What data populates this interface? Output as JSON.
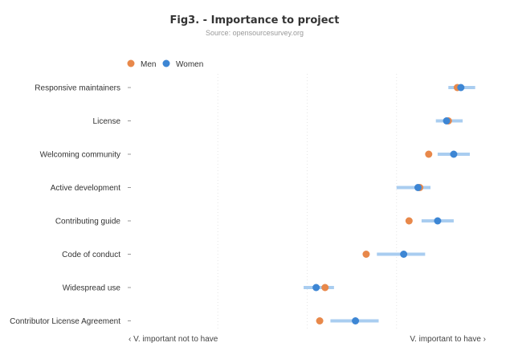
{
  "chart_data": {
    "type": "scatter",
    "title": "Fig3. - Importance to project",
    "subtitle": "Source: opensourcesurvey.org",
    "categories": [
      "Responsive maintainers",
      "License",
      "Welcoming community",
      "Active development",
      "Contributing guide",
      "Code of conduct",
      "Widespread use",
      "Contributor License Agreement"
    ],
    "xlim": [
      -1,
      1
    ],
    "x_axis_left_label": "‹ V. important not to have",
    "x_axis_right_label": "V. important to have ›",
    "legend_position": "top-left",
    "grid": true,
    "series": [
      {
        "name": "Men",
        "color": "#e8884a",
        "values": [
          0.84,
          0.79,
          0.68,
          0.63,
          0.57,
          0.33,
          0.1,
          0.07
        ]
      },
      {
        "name": "Women",
        "color": "#3d86d4",
        "values": [
          0.86,
          0.78,
          0.82,
          0.62,
          0.73,
          0.54,
          0.05,
          0.27
        ],
        "error_low": [
          0.79,
          0.72,
          0.73,
          0.5,
          0.64,
          0.39,
          -0.02,
          0.13
        ],
        "error_high": [
          0.94,
          0.87,
          0.91,
          0.69,
          0.82,
          0.66,
          0.15,
          0.4
        ],
        "error_color": "#a9cdf0"
      }
    ]
  }
}
